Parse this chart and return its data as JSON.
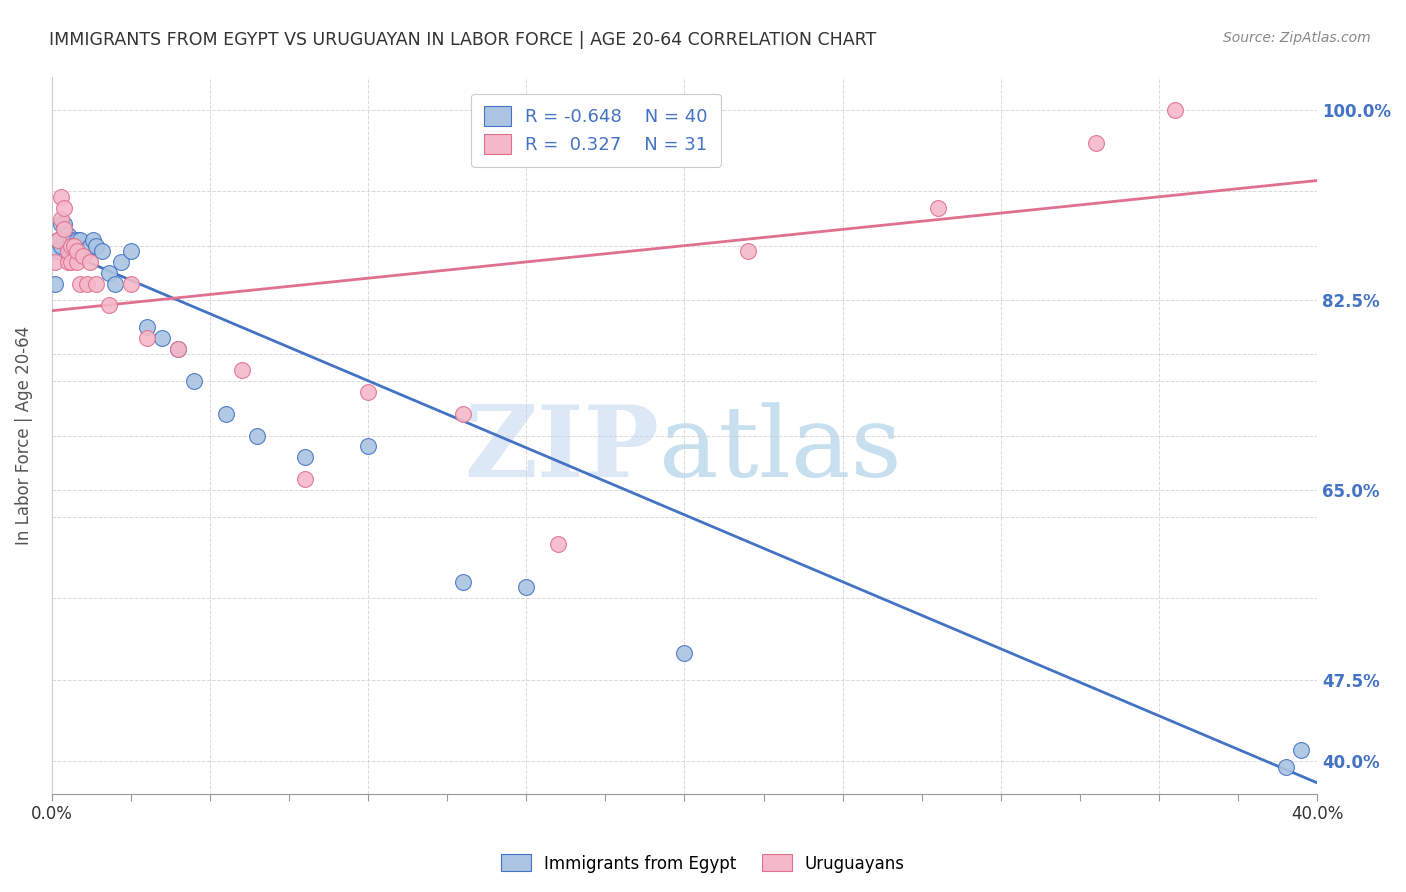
{
  "title": "IMMIGRANTS FROM EGYPT VS URUGUAYAN IN LABOR FORCE | AGE 20-64 CORRELATION CHART",
  "source": "Source: ZipAtlas.com",
  "ylabel": "In Labor Force | Age 20-64",
  "xlim": [
    0.0,
    0.4
  ],
  "ylim": [
    0.37,
    1.03
  ],
  "blue_R": -0.648,
  "blue_N": 40,
  "pink_R": 0.327,
  "pink_N": 31,
  "blue_color": "#aac4e2",
  "pink_color": "#f4b8c8",
  "blue_line_color": "#4472c4",
  "pink_line_color": "#e07090",
  "legend_label_blue": "Immigrants from Egypt",
  "legend_label_pink": "Uruguayans",
  "blue_scatter_x": [
    0.001,
    0.002,
    0.002,
    0.003,
    0.003,
    0.004,
    0.004,
    0.005,
    0.005,
    0.006,
    0.006,
    0.007,
    0.007,
    0.008,
    0.008,
    0.009,
    0.009,
    0.01,
    0.011,
    0.012,
    0.013,
    0.014,
    0.016,
    0.018,
    0.02,
    0.022,
    0.025,
    0.03,
    0.035,
    0.04,
    0.045,
    0.055,
    0.065,
    0.08,
    0.1,
    0.13,
    0.15,
    0.2,
    0.39,
    0.395
  ],
  "blue_scatter_y": [
    0.84,
    0.87,
    0.88,
    0.875,
    0.895,
    0.88,
    0.895,
    0.875,
    0.885,
    0.87,
    0.88,
    0.865,
    0.875,
    0.87,
    0.88,
    0.87,
    0.88,
    0.87,
    0.87,
    0.875,
    0.88,
    0.875,
    0.87,
    0.85,
    0.84,
    0.86,
    0.87,
    0.8,
    0.79,
    0.78,
    0.75,
    0.72,
    0.7,
    0.68,
    0.69,
    0.565,
    0.56,
    0.5,
    0.395,
    0.41
  ],
  "pink_scatter_x": [
    0.001,
    0.002,
    0.003,
    0.003,
    0.004,
    0.004,
    0.005,
    0.005,
    0.006,
    0.006,
    0.007,
    0.008,
    0.008,
    0.009,
    0.01,
    0.011,
    0.012,
    0.014,
    0.018,
    0.025,
    0.03,
    0.04,
    0.06,
    0.08,
    0.1,
    0.13,
    0.16,
    0.22,
    0.28,
    0.33,
    0.355
  ],
  "pink_scatter_y": [
    0.86,
    0.88,
    0.9,
    0.92,
    0.89,
    0.91,
    0.86,
    0.87,
    0.86,
    0.875,
    0.875,
    0.86,
    0.87,
    0.84,
    0.865,
    0.84,
    0.86,
    0.84,
    0.82,
    0.84,
    0.79,
    0.78,
    0.76,
    0.66,
    0.74,
    0.72,
    0.6,
    0.87,
    0.91,
    0.97,
    1.0
  ],
  "watermark_zip": "ZIP",
  "watermark_atlas": "atlas",
  "background_color": "#ffffff",
  "grid_color": "#d0d0d0",
  "ytick_labeled": {
    "0.40": "40.0%",
    "0.475": "47.5%",
    "0.65": "65.0%",
    "0.825": "82.5%",
    "1.00": "100.0%"
  },
  "ytick_all": [
    0.4,
    0.475,
    0.55,
    0.625,
    0.65,
    0.7,
    0.75,
    0.775,
    0.825,
    0.875,
    0.925,
    1.0
  ]
}
